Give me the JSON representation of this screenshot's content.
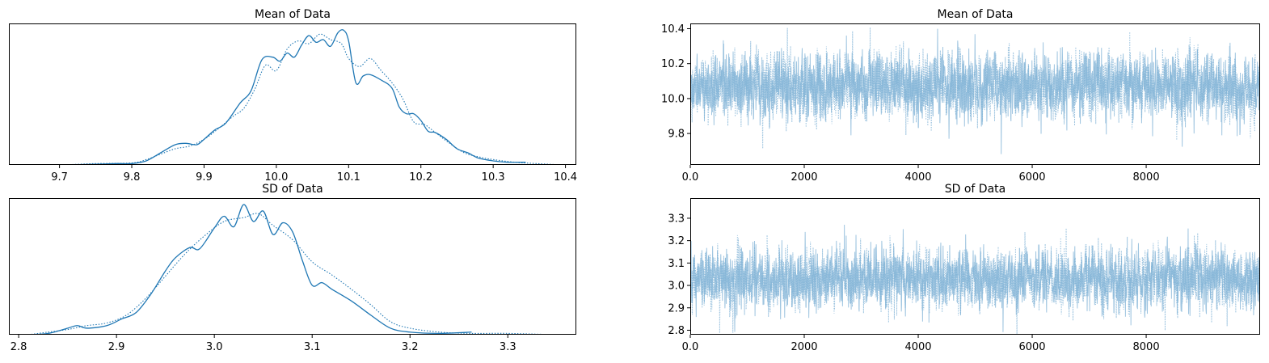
{
  "colors": {
    "line": "#1f77b4",
    "trace": "#7fb2d6",
    "axis": "#000000",
    "background": "#ffffff"
  },
  "chart_data": [
    {
      "id": "kde-mean",
      "type": "line",
      "title": "Mean of Data",
      "xlabel": "",
      "ylabel": "",
      "xlim": [
        9.63,
        10.415
      ],
      "ylim": [
        0,
        1.05
      ],
      "xticks": [
        9.7,
        9.8,
        9.9,
        10.0,
        10.1,
        10.2,
        10.3,
        10.4
      ],
      "yticks_visible": false,
      "grid": false,
      "series": [
        {
          "style": "solid",
          "x": [
            9.655,
            9.7,
            9.75,
            9.78,
            9.8,
            9.82,
            9.84,
            9.86,
            9.875,
            9.89,
            9.9,
            9.915,
            9.93,
            9.95,
            9.965,
            9.98,
            9.995,
            10.005,
            10.015,
            10.025,
            10.035,
            10.045,
            10.055,
            10.065,
            10.075,
            10.085,
            10.093,
            10.1,
            10.11,
            10.12,
            10.13,
            10.145,
            10.16,
            10.17,
            10.18,
            10.19,
            10.2,
            10.21,
            10.22,
            10.235,
            10.25,
            10.265,
            10.28,
            10.3,
            10.32,
            10.345
          ],
          "y": [
            0.0,
            0.0,
            0.005,
            0.01,
            0.01,
            0.03,
            0.09,
            0.15,
            0.16,
            0.15,
            0.19,
            0.26,
            0.31,
            0.46,
            0.55,
            0.78,
            0.8,
            0.77,
            0.83,
            0.8,
            0.89,
            0.96,
            0.91,
            0.93,
            0.88,
            0.98,
            1.0,
            0.92,
            0.61,
            0.66,
            0.67,
            0.63,
            0.57,
            0.43,
            0.38,
            0.38,
            0.33,
            0.25,
            0.24,
            0.19,
            0.12,
            0.09,
            0.05,
            0.03,
            0.02,
            0.02
          ]
        },
        {
          "style": "dotted",
          "x": [
            9.655,
            9.7,
            9.75,
            9.8,
            9.82,
            9.84,
            9.86,
            9.88,
            9.9,
            9.92,
            9.94,
            9.955,
            9.97,
            9.985,
            10.0,
            10.015,
            10.03,
            10.045,
            10.06,
            10.075,
            10.09,
            10.1,
            10.115,
            10.13,
            10.145,
            10.16,
            10.175,
            10.19,
            10.205,
            10.22,
            10.24,
            10.26,
            10.28,
            10.3,
            10.33,
            10.36,
            10.395
          ],
          "y": [
            0.0,
            0.0,
            0.01,
            0.015,
            0.04,
            0.08,
            0.12,
            0.14,
            0.19,
            0.27,
            0.36,
            0.42,
            0.56,
            0.74,
            0.7,
            0.86,
            0.92,
            0.9,
            0.97,
            0.93,
            0.9,
            0.79,
            0.73,
            0.79,
            0.7,
            0.61,
            0.49,
            0.32,
            0.3,
            0.24,
            0.16,
            0.09,
            0.06,
            0.04,
            0.02,
            0.01,
            0.0
          ]
        }
      ]
    },
    {
      "id": "trace-mean",
      "type": "line",
      "title": "Mean of Data",
      "xlabel": "",
      "ylabel": "",
      "xlim": [
        0,
        9999
      ],
      "ylim": [
        9.62,
        10.43
      ],
      "xticks": [
        0,
        2000,
        4000,
        6000,
        8000
      ],
      "yticks": [
        9.8,
        10.0,
        10.2,
        10.4
      ],
      "ytick_labels": [
        "9.8",
        "10.0",
        "10.2",
        "10.4"
      ],
      "grid": false,
      "draws": 10000,
      "center": 10.07,
      "sd": 0.09,
      "series": [
        {
          "style": "solid"
        },
        {
          "style": "dotted"
        }
      ]
    },
    {
      "id": "kde-sd",
      "type": "line",
      "title": "SD of Data",
      "xlabel": "",
      "ylabel": "",
      "xlim": [
        2.79,
        3.37
      ],
      "ylim": [
        0,
        1.05
      ],
      "xticks": [
        2.8,
        2.9,
        3.0,
        3.1,
        3.2,
        3.3
      ],
      "yticks_visible": false,
      "grid": false,
      "series": [
        {
          "style": "solid",
          "x": [
            2.81,
            2.83,
            2.85,
            2.86,
            2.87,
            2.89,
            2.905,
            2.92,
            2.935,
            2.95,
            2.96,
            2.975,
            2.985,
            3.0,
            3.01,
            3.02,
            3.03,
            3.04,
            3.05,
            3.06,
            3.07,
            3.08,
            3.09,
            3.1,
            3.11,
            3.12,
            3.14,
            3.16,
            3.18,
            3.2,
            3.23,
            3.263
          ],
          "y": [
            0.0,
            0.01,
            0.05,
            0.07,
            0.05,
            0.07,
            0.12,
            0.17,
            0.31,
            0.49,
            0.59,
            0.67,
            0.66,
            0.82,
            0.91,
            0.83,
            1.0,
            0.87,
            0.95,
            0.77,
            0.86,
            0.79,
            0.57,
            0.38,
            0.4,
            0.35,
            0.26,
            0.15,
            0.05,
            0.02,
            0.01,
            0.02
          ]
        },
        {
          "style": "dotted",
          "x": [
            2.81,
            2.83,
            2.85,
            2.87,
            2.89,
            2.91,
            2.93,
            2.95,
            2.97,
            2.99,
            3.01,
            3.03,
            3.045,
            3.06,
            3.08,
            3.1,
            3.12,
            3.14,
            3.16,
            3.18,
            3.2,
            3.23,
            3.26,
            3.3,
            3.348
          ],
          "y": [
            0.0,
            0.02,
            0.04,
            0.07,
            0.09,
            0.15,
            0.28,
            0.45,
            0.62,
            0.76,
            0.87,
            0.9,
            0.93,
            0.84,
            0.73,
            0.56,
            0.46,
            0.35,
            0.23,
            0.1,
            0.05,
            0.02,
            0.01,
            0.01,
            0.0
          ]
        }
      ]
    },
    {
      "id": "trace-sd",
      "type": "line",
      "title": "SD of Data",
      "xlabel": "",
      "ylabel": "",
      "xlim": [
        0,
        9999
      ],
      "ylim": [
        2.78,
        3.39
      ],
      "xticks": [
        0,
        2000,
        4000,
        6000,
        8000
      ],
      "yticks": [
        2.8,
        2.9,
        3.0,
        3.1,
        3.2,
        3.3
      ],
      "ytick_labels": [
        "2.8",
        "2.9",
        "3.0",
        "3.1",
        "3.2",
        "3.3"
      ],
      "grid": false,
      "draws": 10000,
      "center": 3.03,
      "sd": 0.065,
      "series": [
        {
          "style": "solid"
        },
        {
          "style": "dotted"
        }
      ]
    }
  ]
}
